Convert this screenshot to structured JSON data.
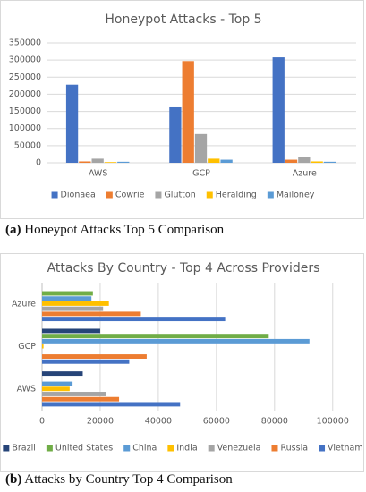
{
  "chart_data": [
    {
      "type": "bar",
      "orientation": "vertical",
      "title": "Honeypot Attacks - Top 5",
      "caption_tag": "(a)",
      "caption": "Honeypot Attacks Top 5 Comparison",
      "categories": [
        "AWS",
        "GCP",
        "Azure"
      ],
      "series": [
        {
          "name": "Dionaea",
          "color": "#4472c4",
          "values": [
            228000,
            162000,
            308000
          ]
        },
        {
          "name": "Cowrie",
          "color": "#ed7d31",
          "values": [
            4000,
            297000,
            9000
          ]
        },
        {
          "name": "Glutton",
          "color": "#a5a5a5",
          "values": [
            12000,
            84000,
            17000
          ]
        },
        {
          "name": "Heralding",
          "color": "#ffc000",
          "values": [
            2000,
            12000,
            4000
          ]
        },
        {
          "name": "Mailoney",
          "color": "#5b9bd5",
          "values": [
            3000,
            9000,
            3000
          ]
        }
      ],
      "ylim": [
        0,
        350000
      ],
      "yticks": [
        0,
        50000,
        100000,
        150000,
        200000,
        250000,
        300000,
        350000
      ],
      "grid": true,
      "legend": "bottom"
    },
    {
      "type": "bar",
      "orientation": "horizontal",
      "title": "Attacks By Country - Top 4 Across Providers",
      "caption_tag": "(b)",
      "caption": "Attacks by Country Top 4 Comparison",
      "categories": [
        "AWS",
        "GCP",
        "Azure"
      ],
      "series": [
        {
          "name": "Brazil",
          "color": "#264478",
          "values": [
            14000,
            20000,
            null
          ]
        },
        {
          "name": "United States",
          "color": "#70ad47",
          "values": [
            null,
            78000,
            17500
          ]
        },
        {
          "name": "China",
          "color": "#5b9bd5",
          "values": [
            10500,
            92000,
            17000
          ]
        },
        {
          "name": "India",
          "color": "#ffc000",
          "values": [
            9500,
            500,
            23000
          ]
        },
        {
          "name": "Venezuela",
          "color": "#a5a5a5",
          "values": [
            22000,
            null,
            21000
          ]
        },
        {
          "name": "Russia",
          "color": "#ed7d31",
          "values": [
            26500,
            36000,
            34000
          ]
        },
        {
          "name": "Vietnam",
          "color": "#4472c4",
          "values": [
            47500,
            30000,
            63000
          ]
        }
      ],
      "xlim": [
        0,
        105000
      ],
      "xticks": [
        0,
        20000,
        40000,
        60000,
        80000,
        100000
      ],
      "grid": true,
      "legend": "bottom"
    }
  ]
}
